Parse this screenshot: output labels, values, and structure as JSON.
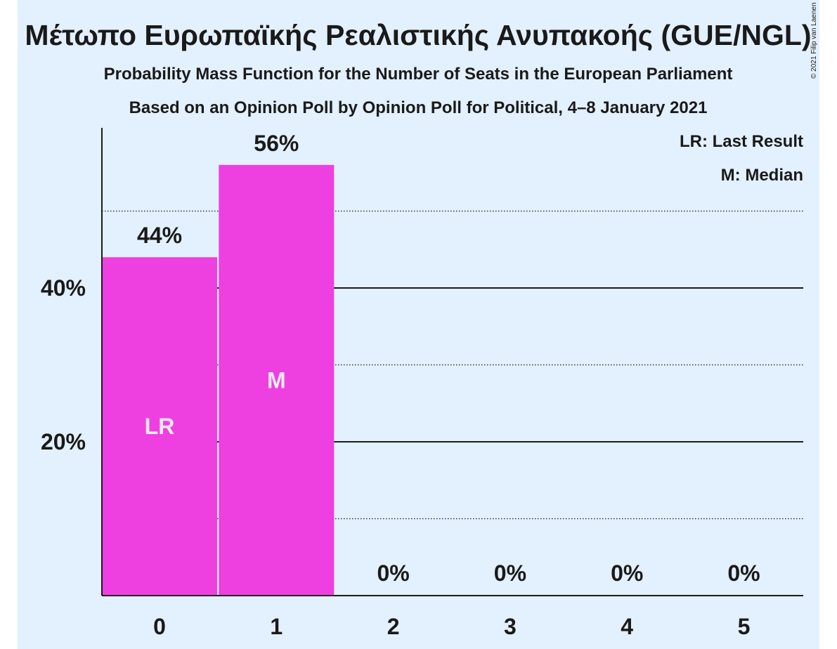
{
  "chart_data": {
    "type": "bar",
    "title": "Μέτωπο Ευρωπαϊκής Ρεαλιστικής Ανυπακοής (GUE/NGL)",
    "subtitle": "Probability Mass Function for the Number of Seats in the European Parliament",
    "subtitle2": "Based on an Opinion Poll by Opinion Poll for Political, 4–8 January 2021",
    "copyright": "© 2021 Filip van Laenen",
    "categories": [
      "0",
      "1",
      "2",
      "3",
      "4",
      "5"
    ],
    "values": [
      44,
      56,
      0,
      0,
      0,
      0
    ],
    "value_labels": [
      "44%",
      "56%",
      "0%",
      "0%",
      "0%",
      "0%"
    ],
    "bar_markers": [
      "LR",
      "M",
      "",
      "",
      "",
      ""
    ],
    "ylim": [
      0,
      60
    ],
    "yticks": [
      20,
      40
    ],
    "ytick_labels": [
      "20%",
      "40%"
    ],
    "minor_gridlines": [
      10,
      30,
      50
    ],
    "legend": [
      "LR: Last Result",
      "M: Median"
    ],
    "legend_position": "top-right",
    "colors": {
      "bar": "#ee40e0",
      "background": "#e3f0fd",
      "text": "#1a1a1a",
      "marker_text": "#f4e8f4"
    }
  }
}
